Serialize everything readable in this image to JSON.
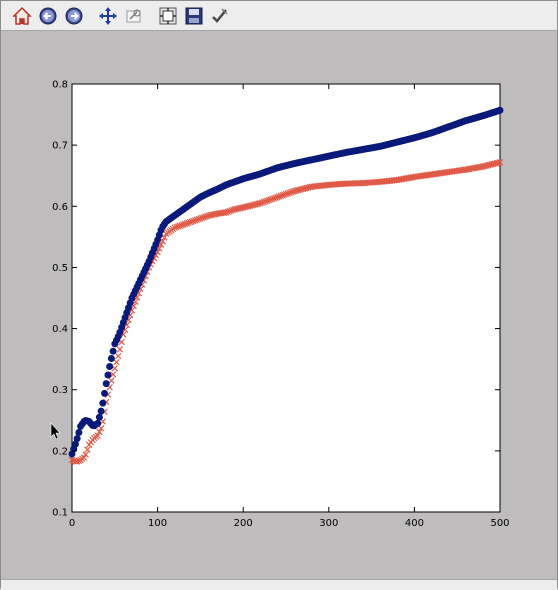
{
  "toolbar": {
    "buttons": [
      {
        "name": "home-button",
        "icon": "home-icon",
        "tooltip": "Home"
      },
      {
        "name": "back-button",
        "icon": "back-arrow-icon",
        "tooltip": "Back"
      },
      {
        "name": "forward-button",
        "icon": "forward-arrow-icon",
        "tooltip": "Forward"
      },
      {
        "name": "pan-button",
        "icon": "pan-move-icon",
        "tooltip": "Pan"
      },
      {
        "name": "zoom-button",
        "icon": "zoom-rect-icon",
        "tooltip": "Zoom"
      },
      {
        "name": "subplots-button",
        "icon": "subplots-config-icon",
        "tooltip": "Subplots"
      },
      {
        "name": "save-button",
        "icon": "save-floppy-icon",
        "tooltip": "Save"
      },
      {
        "name": "edit-button",
        "icon": "edit-check-icon",
        "tooltip": "Edit"
      }
    ]
  },
  "colors": {
    "series1": "#0a1a7a",
    "series2": "#e05a48",
    "background": "#bfbcbd",
    "axes_bg": "#ffffff"
  },
  "chart_data": {
    "type": "scatter",
    "title": "",
    "xlabel": "",
    "ylabel": "",
    "xlim": [
      0,
      500
    ],
    "ylim": [
      0.1,
      0.8
    ],
    "x_ticks": [
      0,
      100,
      200,
      300,
      400,
      500
    ],
    "y_ticks": [
      0.1,
      0.2,
      0.3,
      0.4,
      0.5,
      0.6,
      0.7,
      0.8
    ],
    "x_tick_labels": [
      "0",
      "100",
      "200",
      "300",
      "400",
      "500"
    ],
    "y_tick_labels": [
      "0.1",
      "0.2",
      "0.3",
      "0.4",
      "0.5",
      "0.6",
      "0.7",
      "0.8"
    ],
    "series": [
      {
        "name": "series-1",
        "marker": "circle",
        "color": "#0a1a7a",
        "x": [
          0,
          5,
          10,
          15,
          20,
          25,
          30,
          35,
          40,
          45,
          50,
          55,
          60,
          70,
          80,
          90,
          100,
          105,
          110,
          120,
          130,
          140,
          150,
          160,
          170,
          180,
          190,
          200,
          220,
          240,
          260,
          280,
          300,
          320,
          340,
          360,
          380,
          400,
          420,
          440,
          460,
          480,
          500
        ],
        "y": [
          0.195,
          0.215,
          0.24,
          0.25,
          0.248,
          0.24,
          0.245,
          0.27,
          0.31,
          0.345,
          0.375,
          0.39,
          0.41,
          0.45,
          0.48,
          0.51,
          0.545,
          0.565,
          0.575,
          0.585,
          0.595,
          0.605,
          0.615,
          0.622,
          0.628,
          0.635,
          0.64,
          0.645,
          0.653,
          0.663,
          0.67,
          0.676,
          0.682,
          0.688,
          0.693,
          0.698,
          0.705,
          0.712,
          0.72,
          0.73,
          0.74,
          0.748,
          0.757
        ]
      },
      {
        "name": "series-2",
        "marker": "x",
        "color": "#e05a48",
        "x": [
          0,
          5,
          10,
          15,
          20,
          25,
          30,
          35,
          40,
          45,
          50,
          55,
          60,
          70,
          80,
          90,
          100,
          105,
          110,
          120,
          130,
          140,
          150,
          160,
          170,
          180,
          190,
          200,
          220,
          240,
          260,
          280,
          300,
          320,
          340,
          360,
          380,
          400,
          420,
          440,
          460,
          480,
          500
        ],
        "y": [
          0.185,
          0.182,
          0.185,
          0.19,
          0.21,
          0.22,
          0.225,
          0.24,
          0.28,
          0.31,
          0.335,
          0.36,
          0.39,
          0.43,
          0.465,
          0.5,
          0.525,
          0.54,
          0.555,
          0.565,
          0.57,
          0.575,
          0.58,
          0.585,
          0.588,
          0.59,
          0.595,
          0.598,
          0.605,
          0.615,
          0.625,
          0.632,
          0.635,
          0.637,
          0.638,
          0.64,
          0.643,
          0.648,
          0.652,
          0.656,
          0.66,
          0.665,
          0.672
        ]
      }
    ]
  }
}
